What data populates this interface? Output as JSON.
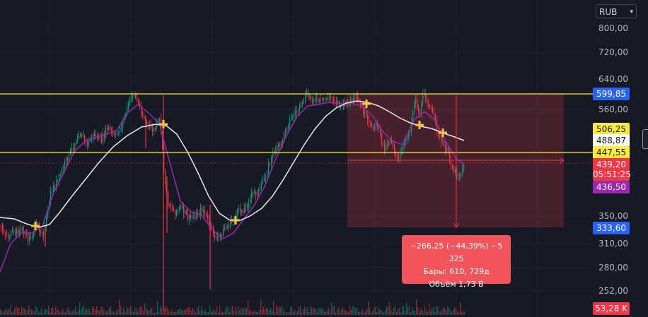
{
  "currency_selector": {
    "label": "RUB"
  },
  "price_scale": {
    "ticks": [
      "800,00",
      "720,00",
      "640,00",
      "560,00",
      "350,00",
      "310,00",
      "280,00",
      "252,00"
    ]
  },
  "price_labels": {
    "resistance": {
      "value": "599,85",
      "color": "#2962ff"
    },
    "upper_level": {
      "value": "506,25",
      "color": "#ffeb3b"
    },
    "ma_slow": {
      "value": "488,87",
      "color": "#ffffff"
    },
    "support": {
      "value": "447,55",
      "color": "#ffeb3b"
    },
    "last_price": {
      "value": "439,20",
      "color": "#f23645"
    },
    "countdown": {
      "value": "05:51:25",
      "color": "#f23645"
    },
    "ma_fast": {
      "value": "436,50",
      "color": "#9c27b0"
    },
    "range_low": {
      "value": "333,60",
      "color": "#2962ff"
    },
    "volume": {
      "value": "53,28 K",
      "color": "#f23645"
    }
  },
  "measure_tool": {
    "change": "−266,25 (−44,39%) −5 325",
    "bars": "Бары: 610, 729д",
    "volume": "Объём 1,73 B"
  },
  "chart_data": {
    "type": "candlestick",
    "horizontal_levels": [
      599.85,
      447.55
    ],
    "annotations": [
      "−266,25 (−44,39%) −5 325",
      "Бары: 610, 729д",
      "Объём 1,73 B"
    ],
    "close_path": [
      [
        0,
        320
      ],
      [
        10,
        335
      ],
      [
        20,
        330
      ],
      [
        30,
        325
      ],
      [
        40,
        340
      ],
      [
        50,
        320
      ],
      [
        62,
        330
      ],
      [
        72,
        270
      ],
      [
        82,
        255
      ],
      [
        92,
        230
      ],
      [
        102,
        210
      ],
      [
        112,
        185
      ],
      [
        122,
        205
      ],
      [
        132,
        190
      ],
      [
        142,
        200
      ],
      [
        152,
        180
      ],
      [
        162,
        195
      ],
      [
        172,
        175
      ],
      [
        182,
        145
      ],
      [
        188,
        130
      ],
      [
        196,
        150
      ],
      [
        206,
        175
      ],
      [
        216,
        185
      ],
      [
        226,
        170
      ],
      [
        231,
        240
      ],
      [
        236,
        285
      ],
      [
        246,
        300
      ],
      [
        256,
        295
      ],
      [
        266,
        310
      ],
      [
        276,
        305
      ],
      [
        286,
        295
      ],
      [
        296,
        320
      ],
      [
        306,
        340
      ],
      [
        316,
        325
      ],
      [
        326,
        315
      ],
      [
        336,
        300
      ],
      [
        346,
        295
      ],
      [
        356,
        275
      ],
      [
        366,
        270
      ],
      [
        376,
        245
      ],
      [
        386,
        215
      ],
      [
        396,
        205
      ],
      [
        406,
        175
      ],
      [
        416,
        160
      ],
      [
        426,
        150
      ],
      [
        432,
        135
      ],
      [
        442,
        140
      ],
      [
        452,
        145
      ],
      [
        462,
        138
      ],
      [
        472,
        140
      ],
      [
        482,
        150
      ],
      [
        492,
        145
      ],
      [
        502,
        140
      ],
      [
        512,
        155
      ],
      [
        522,
        180
      ],
      [
        532,
        175
      ],
      [
        542,
        210
      ],
      [
        552,
        195
      ],
      [
        562,
        230
      ],
      [
        572,
        200
      ],
      [
        580,
        180
      ],
      [
        586,
        135
      ],
      [
        592,
        165
      ],
      [
        599,
        130
      ],
      [
        606,
        150
      ],
      [
        614,
        170
      ],
      [
        622,
        200
      ],
      [
        632,
        215
      ],
      [
        640,
        240
      ],
      [
        648,
        250
      ],
      [
        656,
        235
      ]
    ],
    "ma_fast": [
      [
        0,
        385
      ],
      [
        15,
        345
      ],
      [
        30,
        330
      ],
      [
        45,
        330
      ],
      [
        60,
        320
      ],
      [
        75,
        275
      ],
      [
        90,
        245
      ],
      [
        105,
        215
      ],
      [
        120,
        200
      ],
      [
        135,
        195
      ],
      [
        150,
        190
      ],
      [
        165,
        185
      ],
      [
        180,
        160
      ],
      [
        195,
        148
      ],
      [
        210,
        160
      ],
      [
        225,
        175
      ],
      [
        240,
        230
      ],
      [
        255,
        285
      ],
      [
        270,
        300
      ],
      [
        285,
        305
      ],
      [
        300,
        325
      ],
      [
        315,
        338
      ],
      [
        330,
        330
      ],
      [
        345,
        310
      ],
      [
        360,
        290
      ],
      [
        375,
        262
      ],
      [
        390,
        225
      ],
      [
        405,
        192
      ],
      [
        420,
        165
      ],
      [
        435,
        150
      ],
      [
        450,
        148
      ],
      [
        465,
        145
      ],
      [
        480,
        147
      ],
      [
        495,
        145
      ],
      [
        510,
        150
      ],
      [
        525,
        162
      ],
      [
        540,
        185
      ],
      [
        555,
        200
      ],
      [
        570,
        205
      ],
      [
        585,
        170
      ],
      [
        600,
        158
      ],
      [
        615,
        170
      ],
      [
        630,
        200
      ],
      [
        645,
        225
      ],
      [
        656,
        232
      ]
    ],
    "ma_slow": [
      [
        0,
        308
      ],
      [
        20,
        310
      ],
      [
        40,
        318
      ],
      [
        55,
        322
      ],
      [
        70,
        318
      ],
      [
        85,
        300
      ],
      [
        100,
        280
      ],
      [
        120,
        255
      ],
      [
        140,
        230
      ],
      [
        160,
        208
      ],
      [
        180,
        192
      ],
      [
        200,
        180
      ],
      [
        220,
        176
      ],
      [
        235,
        178
      ],
      [
        250,
        190
      ],
      [
        265,
        215
      ],
      [
        280,
        245
      ],
      [
        295,
        278
      ],
      [
        310,
        302
      ],
      [
        325,
        312
      ],
      [
        340,
        312
      ],
      [
        355,
        305
      ],
      [
        370,
        295
      ],
      [
        385,
        278
      ],
      [
        400,
        255
      ],
      [
        415,
        230
      ],
      [
        430,
        205
      ],
      [
        445,
        183
      ],
      [
        460,
        165
      ],
      [
        475,
        153
      ],
      [
        490,
        146
      ],
      [
        505,
        143
      ],
      [
        520,
        145
      ],
      [
        535,
        150
      ],
      [
        550,
        158
      ],
      [
        565,
        167
      ],
      [
        580,
        174
      ],
      [
        595,
        179
      ],
      [
        610,
        182
      ],
      [
        625,
        188
      ],
      [
        640,
        193
      ],
      [
        656,
        199
      ]
    ],
    "markers": [
      [
        50,
        320
      ],
      [
        231,
        176
      ],
      [
        333,
        312
      ],
      [
        518,
        147
      ],
      [
        593,
        177
      ],
      [
        626,
        188
      ]
    ],
    "measure_box": {
      "x0": 491,
      "x1": 797,
      "y0": 133,
      "y1": 322
    },
    "arrow_x": 645
  }
}
